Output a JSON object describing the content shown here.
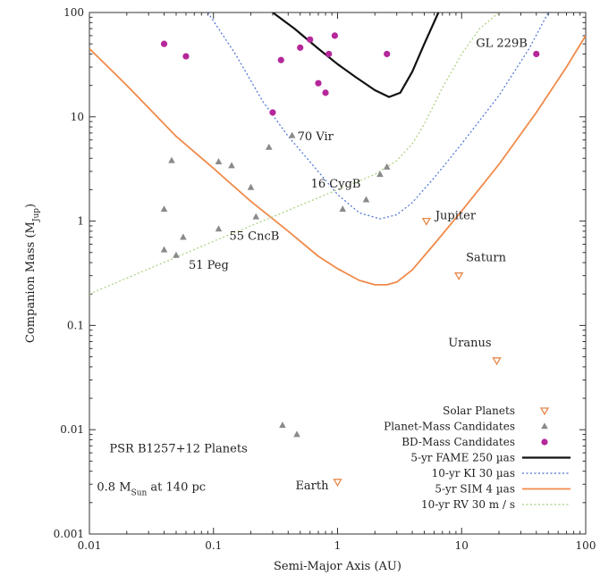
{
  "chart_data": {
    "type": "scatter",
    "xscale": "log",
    "yscale": "log",
    "xlim": [
      0.01,
      100
    ],
    "ylim": [
      0.001,
      100
    ],
    "xlabel": "Semi-Major Axis (AU)",
    "ylabel": "Companion Mass (M",
    "ylabel_sub": "Jup",
    "ylabel_close": ")",
    "x_ticks": [
      0.01,
      0.1,
      1,
      10,
      100
    ],
    "x_tick_labels": [
      "0.01",
      "0.1",
      "1",
      "10",
      "100"
    ],
    "y_ticks": [
      0.001,
      0.01,
      0.1,
      1,
      10,
      100
    ],
    "y_tick_labels": [
      "0.001",
      "0.01",
      "0.1",
      "1",
      "10",
      "100"
    ],
    "grid": false,
    "legend_position": "lower-right",
    "colors": {
      "solar": "#e8884a",
      "planet_mass": "#8a8a8a",
      "bd_mass": "#b5279a",
      "fame": "#111111",
      "ki": "#4a6fd4",
      "sim": "#f08a4a",
      "rv": "#a8d07a"
    },
    "series": [
      {
        "key": "solar",
        "name": "Solar Planets",
        "marker": "triangle-down",
        "points": [
          {
            "x": 1.0,
            "y": 0.00315,
            "label": "Earth"
          },
          {
            "x": 5.2,
            "y": 1.0,
            "label": "Jupiter"
          },
          {
            "x": 9.5,
            "y": 0.3,
            "label": "Saturn"
          },
          {
            "x": 19.2,
            "y": 0.046,
            "label": "Uranus"
          }
        ]
      },
      {
        "key": "planet_mass",
        "name": "Planet-Mass Candidates",
        "marker": "triangle-up",
        "points": [
          {
            "x": 0.046,
            "y": 3.8
          },
          {
            "x": 0.04,
            "y": 1.3
          },
          {
            "x": 0.04,
            "y": 0.53
          },
          {
            "x": 0.05,
            "y": 0.47,
            "label": "51 Peg"
          },
          {
            "x": 0.057,
            "y": 0.7
          },
          {
            "x": 0.11,
            "y": 3.7
          },
          {
            "x": 0.11,
            "y": 0.84,
            "label": "55 CncB"
          },
          {
            "x": 0.14,
            "y": 3.4
          },
          {
            "x": 0.2,
            "y": 2.1
          },
          {
            "x": 0.22,
            "y": 1.1
          },
          {
            "x": 0.28,
            "y": 5.1
          },
          {
            "x": 0.43,
            "y": 6.6,
            "label": "70 Vir"
          },
          {
            "x": 1.1,
            "y": 1.3
          },
          {
            "x": 1.7,
            "y": 1.6,
            "label": "16 CygB"
          },
          {
            "x": 2.2,
            "y": 2.8
          },
          {
            "x": 2.5,
            "y": 3.3
          },
          {
            "x": 0.36,
            "y": 0.011
          },
          {
            "x": 0.47,
            "y": 0.009
          }
        ]
      },
      {
        "key": "bd_mass",
        "name": "BD-Mass Candidates",
        "marker": "circle",
        "points": [
          {
            "x": 0.04,
            "y": 50
          },
          {
            "x": 0.06,
            "y": 38
          },
          {
            "x": 0.3,
            "y": 11
          },
          {
            "x": 0.35,
            "y": 35
          },
          {
            "x": 0.5,
            "y": 46
          },
          {
            "x": 0.6,
            "y": 55
          },
          {
            "x": 0.7,
            "y": 21
          },
          {
            "x": 0.8,
            "y": 17
          },
          {
            "x": 0.85,
            "y": 40
          },
          {
            "x": 0.95,
            "y": 60
          },
          {
            "x": 2.5,
            "y": 40
          },
          {
            "x": 40,
            "y": 40,
            "label": "GL 229B"
          }
        ]
      }
    ],
    "curves": [
      {
        "key": "fame",
        "name": "5-yr FAME 250 µas",
        "style": "solid",
        "width": 2.2,
        "x": [
          0.3,
          0.45,
          0.7,
          1.0,
          1.4,
          2.0,
          2.6,
          3.2,
          4.0,
          5.0,
          6.5
        ],
        "y": [
          100,
          70,
          45,
          32,
          24,
          18,
          15.5,
          17,
          27,
          50,
          100
        ]
      },
      {
        "key": "ki",
        "name": "10-yr KI 30 µas",
        "style": "dotted",
        "width": 1.2,
        "x": [
          0.09,
          0.15,
          0.25,
          0.4,
          0.6,
          1.0,
          1.5,
          2.2,
          3.0,
          4.0,
          6.0,
          10,
          20,
          35,
          50
        ],
        "y": [
          100,
          40,
          14,
          6.5,
          3.7,
          1.8,
          1.2,
          1.05,
          1.15,
          1.5,
          2.6,
          5.5,
          16,
          45,
          100
        ]
      },
      {
        "key": "sim",
        "name": "5-yr SIM 4 µas",
        "style": "solid",
        "width": 1.8,
        "x": [
          0.01,
          0.02,
          0.05,
          0.1,
          0.2,
          0.4,
          0.7,
          1.0,
          1.5,
          2.0,
          2.5,
          3.0,
          4.0,
          6.0,
          10,
          20,
          40,
          70,
          100
        ],
        "y": [
          45,
          20,
          6.5,
          3.2,
          1.55,
          0.8,
          0.46,
          0.35,
          0.27,
          0.245,
          0.245,
          0.26,
          0.34,
          0.6,
          1.25,
          3.5,
          11,
          30,
          60
        ]
      },
      {
        "key": "rv",
        "name": "10-yr RV 30 m / s",
        "style": "dotted",
        "width": 1.2,
        "x": [
          0.01,
          0.05,
          0.1,
          0.3,
          1.0,
          2.0,
          3.0,
          4.0,
          5.0,
          7.0,
          10,
          14,
          20
        ],
        "y": [
          0.2,
          0.45,
          0.64,
          1.1,
          2.0,
          2.8,
          3.8,
          5.5,
          8.5,
          19,
          40,
          70,
          100
        ]
      }
    ],
    "annotations": [
      {
        "text": "PSR B1257+12 Planets",
        "x": 0.0145,
        "y": 0.0061
      },
      {
        "text": "0.8 M",
        "sub": "Sun",
        "after": " at 140 pc",
        "x": 0.0115,
        "y": 0.0026
      }
    ]
  }
}
